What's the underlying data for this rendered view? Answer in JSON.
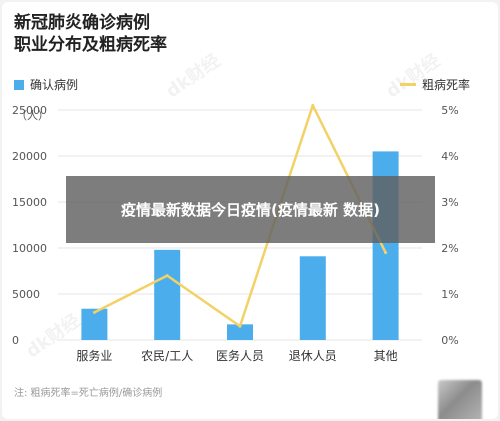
{
  "title": {
    "line1": "新冠肺炎确诊病例",
    "line2": "职业分布及粗病死率"
  },
  "legend": {
    "bar": "确认病例",
    "line": "粗病死率"
  },
  "overlay_text": "疫情最新数据今日疫情(疫情最新 数据)",
  "note": "注: 粗病死率=死亡病例/确诊病例",
  "watermark": "dk财经",
  "colors": {
    "bar": "#4badeb",
    "line": "#f2d268",
    "grid": "#e6e6e6",
    "axis_text": "#555555"
  },
  "chart_data": {
    "type": "bar",
    "categories": [
      "服务业",
      "农民/工人",
      "医务人员",
      "退休人员",
      "其他"
    ],
    "series": [
      {
        "name": "确认病例",
        "type": "bar",
        "axis": "left",
        "values": [
          3400,
          9800,
          1700,
          9100,
          20500
        ]
      },
      {
        "name": "粗病死率",
        "type": "line",
        "axis": "right",
        "values": [
          0.6,
          1.4,
          0.3,
          5.1,
          1.9
        ]
      }
    ],
    "y_left": {
      "label": "（人）",
      "ylim": [
        0,
        25000
      ],
      "ticks": [
        "0",
        "5000",
        "10000",
        "15000",
        "20000",
        "25000"
      ]
    },
    "y_right": {
      "ylim": [
        0,
        5
      ],
      "ticks": [
        "0%",
        "1%",
        "2%",
        "3%",
        "4%",
        "5%"
      ]
    },
    "grid": true,
    "legend_position": "top"
  }
}
